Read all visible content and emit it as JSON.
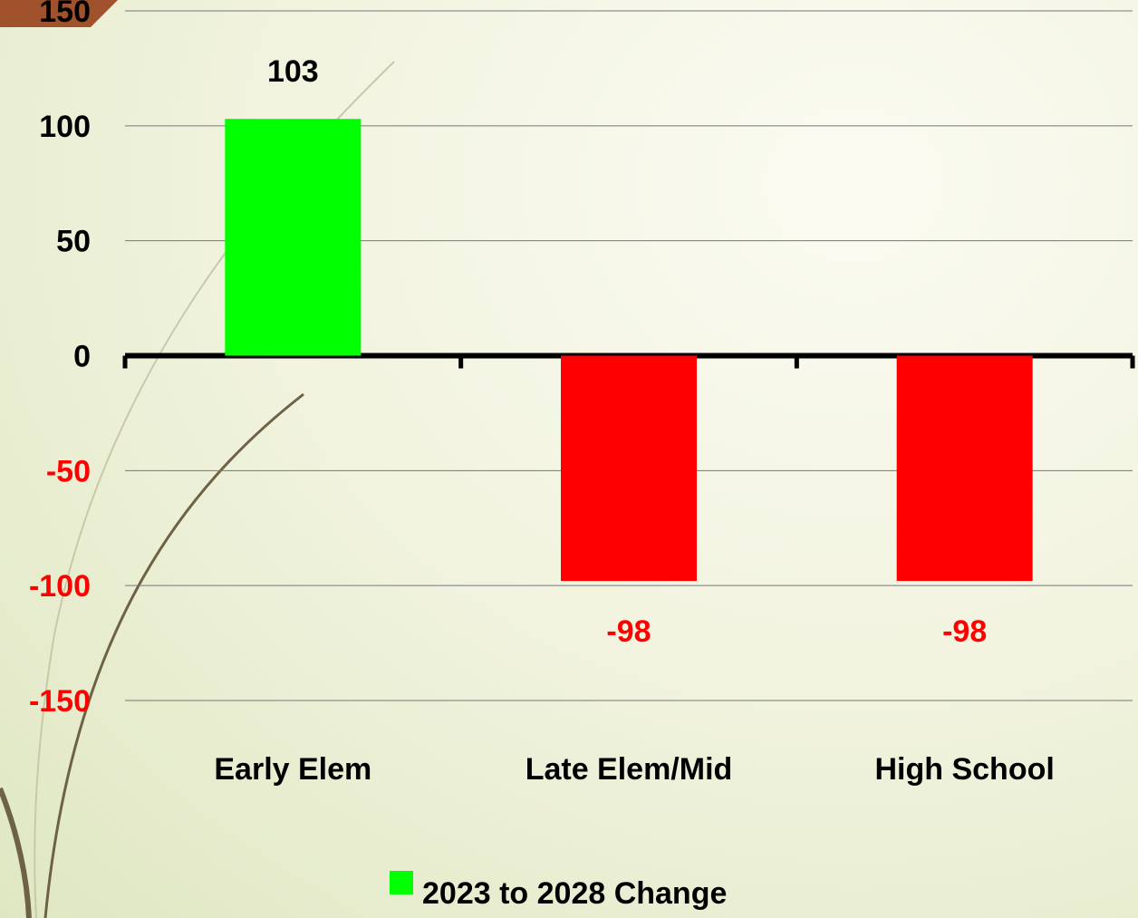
{
  "chart_data": {
    "type": "bar",
    "categories": [
      "Early Elem",
      "Late Elem/Mid",
      "High School"
    ],
    "series": [
      {
        "name": "2023 to 2028 Change",
        "color": "#00ff00",
        "values": [
          103,
          -98,
          -98
        ]
      }
    ],
    "colors": [
      "#00ff00",
      "#ff0000",
      "#ff0000"
    ],
    "ylim": [
      -150,
      150
    ],
    "yticks": [
      -150,
      -100,
      -50,
      0,
      50,
      100,
      150
    ],
    "grid": true,
    "legend": "bottom"
  }
}
